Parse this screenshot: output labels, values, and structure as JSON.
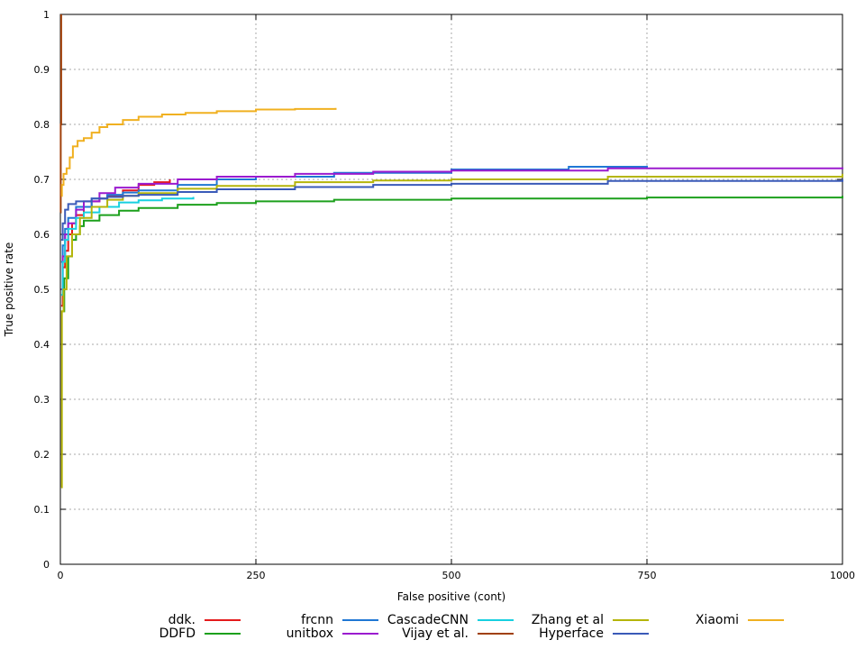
{
  "chart_data": {
    "type": "line",
    "title": "",
    "xlabel": "False positive (cont)",
    "ylabel": "True positive rate",
    "xlim": [
      0,
      1000
    ],
    "ylim": [
      0,
      1
    ],
    "xticks": [
      0,
      250,
      500,
      750,
      1000
    ],
    "yticks": [
      0,
      0.1,
      0.2,
      0.3,
      0.4,
      0.5,
      0.6,
      0.7,
      0.8,
      0.9,
      1
    ],
    "grid": true,
    "legend_position": "bottom",
    "series": [
      {
        "name": "ddk.",
        "color": "#e41a1c",
        "points": [
          [
            1,
            0.47
          ],
          [
            3,
            0.54
          ],
          [
            6,
            0.57
          ],
          [
            10,
            0.6
          ],
          [
            15,
            0.62
          ],
          [
            20,
            0.635
          ],
          [
            30,
            0.65
          ],
          [
            40,
            0.66
          ],
          [
            50,
            0.665
          ],
          [
            60,
            0.67
          ],
          [
            80,
            0.68
          ],
          [
            100,
            0.69
          ],
          [
            120,
            0.695
          ],
          [
            140,
            0.7
          ]
        ]
      },
      {
        "name": "DDFD",
        "color": "#1ca01c",
        "points": [
          [
            2,
            0.46
          ],
          [
            5,
            0.52
          ],
          [
            10,
            0.56
          ],
          [
            15,
            0.59
          ],
          [
            20,
            0.6
          ],
          [
            25,
            0.615
          ],
          [
            30,
            0.625
          ],
          [
            50,
            0.635
          ],
          [
            75,
            0.643
          ],
          [
            100,
            0.648
          ],
          [
            150,
            0.654
          ],
          [
            200,
            0.657
          ],
          [
            250,
            0.66
          ],
          [
            350,
            0.663
          ],
          [
            500,
            0.665
          ],
          [
            750,
            0.667
          ],
          [
            1000,
            0.67
          ]
        ]
      },
      {
        "name": "frcnn",
        "color": "#1f77d4",
        "points": [
          [
            1,
            0.55
          ],
          [
            3,
            0.58
          ],
          [
            6,
            0.61
          ],
          [
            10,
            0.63
          ],
          [
            20,
            0.65
          ],
          [
            40,
            0.665
          ],
          [
            60,
            0.672
          ],
          [
            80,
            0.676
          ],
          [
            100,
            0.68
          ],
          [
            150,
            0.69
          ],
          [
            200,
            0.7
          ],
          [
            250,
            0.705
          ],
          [
            350,
            0.712
          ],
          [
            500,
            0.718
          ],
          [
            650,
            0.723
          ],
          [
            750,
            0.725
          ]
        ]
      },
      {
        "name": "unitbox",
        "color": "#9b1bcf",
        "points": [
          [
            1,
            0.5
          ],
          [
            3,
            0.56
          ],
          [
            6,
            0.6
          ],
          [
            10,
            0.62
          ],
          [
            20,
            0.645
          ],
          [
            30,
            0.66
          ],
          [
            50,
            0.675
          ],
          [
            70,
            0.685
          ],
          [
            100,
            0.692
          ],
          [
            150,
            0.7
          ],
          [
            200,
            0.705
          ],
          [
            300,
            0.71
          ],
          [
            400,
            0.714
          ],
          [
            500,
            0.716
          ],
          [
            700,
            0.72
          ],
          [
            1000,
            0.722
          ]
        ]
      },
      {
        "name": "CascadeCNN",
        "color": "#17d0e0",
        "points": [
          [
            1,
            0.49
          ],
          [
            3,
            0.55
          ],
          [
            6,
            0.59
          ],
          [
            10,
            0.61
          ],
          [
            20,
            0.63
          ],
          [
            30,
            0.64
          ],
          [
            50,
            0.65
          ],
          [
            75,
            0.658
          ],
          [
            100,
            0.662
          ],
          [
            130,
            0.665
          ],
          [
            170,
            0.668
          ]
        ]
      },
      {
        "name": "Vijay et al.",
        "color": "#a0400a",
        "points": [
          [
            0,
            0.64
          ],
          [
            0.5,
            0.8
          ],
          [
            1,
            1.0
          ]
        ]
      },
      {
        "name": "Zhang et al",
        "color": "#b5b50a",
        "points": [
          [
            1,
            0.14
          ],
          [
            2,
            0.46
          ],
          [
            4,
            0.5
          ],
          [
            8,
            0.56
          ],
          [
            15,
            0.6
          ],
          [
            25,
            0.63
          ],
          [
            40,
            0.65
          ],
          [
            60,
            0.663
          ],
          [
            80,
            0.67
          ],
          [
            100,
            0.675
          ],
          [
            150,
            0.683
          ],
          [
            200,
            0.688
          ],
          [
            300,
            0.695
          ],
          [
            400,
            0.698
          ],
          [
            500,
            0.7
          ],
          [
            700,
            0.705
          ],
          [
            1000,
            0.71
          ]
        ]
      },
      {
        "name": "Hyperface",
        "color": "#3a5ab8",
        "points": [
          [
            1,
            0.59
          ],
          [
            3,
            0.62
          ],
          [
            6,
            0.645
          ],
          [
            10,
            0.655
          ],
          [
            20,
            0.66
          ],
          [
            40,
            0.665
          ],
          [
            60,
            0.668
          ],
          [
            80,
            0.67
          ],
          [
            100,
            0.672
          ],
          [
            150,
            0.677
          ],
          [
            200,
            0.682
          ],
          [
            300,
            0.686
          ],
          [
            400,
            0.69
          ],
          [
            500,
            0.692
          ],
          [
            700,
            0.697
          ],
          [
            1000,
            0.7
          ]
        ]
      },
      {
        "name": "Xiaomi",
        "color": "#f0b020",
        "points": [
          [
            1,
            0.67
          ],
          [
            2,
            0.69
          ],
          [
            4,
            0.71
          ],
          [
            8,
            0.72
          ],
          [
            12,
            0.74
          ],
          [
            16,
            0.76
          ],
          [
            22,
            0.77
          ],
          [
            30,
            0.775
          ],
          [
            40,
            0.785
          ],
          [
            50,
            0.795
          ],
          [
            60,
            0.8
          ],
          [
            80,
            0.808
          ],
          [
            100,
            0.814
          ],
          [
            130,
            0.818
          ],
          [
            160,
            0.821
          ],
          [
            200,
            0.824
          ],
          [
            250,
            0.827
          ],
          [
            300,
            0.828
          ],
          [
            352,
            0.83
          ]
        ]
      }
    ]
  }
}
